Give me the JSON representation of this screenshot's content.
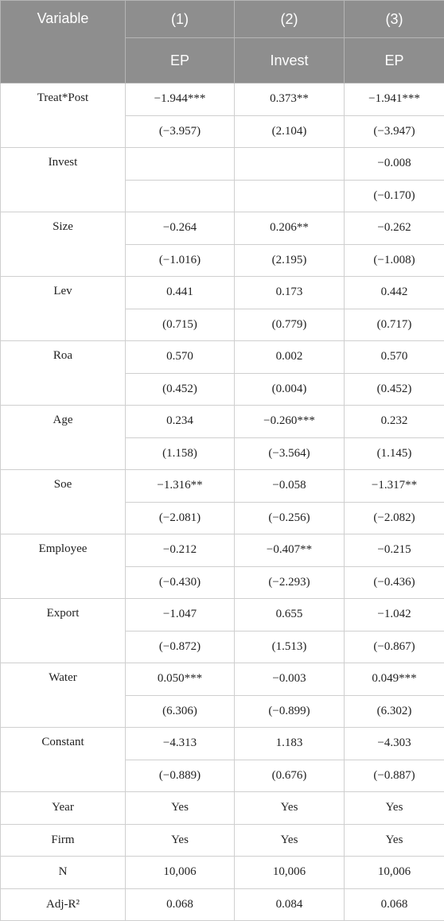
{
  "header": {
    "variable": "Variable",
    "columns": [
      "(1)",
      "(2)",
      "(3)"
    ],
    "dependent": [
      "EP",
      "Invest",
      "EP"
    ]
  },
  "rows": [
    {
      "label": "Treat*Post",
      "coef": [
        "−1.944***",
        "0.373**",
        "−1.941***"
      ],
      "t": [
        "(−3.957)",
        "(2.104)",
        "(−3.947)"
      ]
    },
    {
      "label": "Invest",
      "coef": [
        null,
        null,
        "−0.008"
      ],
      "t": [
        null,
        null,
        "(−0.170)"
      ]
    },
    {
      "label": "Size",
      "coef": [
        "−0.264",
        "0.206**",
        "−0.262"
      ],
      "t": [
        "(−1.016)",
        "(2.195)",
        "(−1.008)"
      ]
    },
    {
      "label": "Lev",
      "coef": [
        "0.441",
        "0.173",
        "0.442"
      ],
      "t": [
        "(0.715)",
        "(0.779)",
        "(0.717)"
      ]
    },
    {
      "label": "Roa",
      "coef": [
        "0.570",
        "0.002",
        "0.570"
      ],
      "t": [
        "(0.452)",
        "(0.004)",
        "(0.452)"
      ]
    },
    {
      "label": "Age",
      "coef": [
        "0.234",
        "−0.260***",
        "0.232"
      ],
      "t": [
        "(1.158)",
        "(−3.564)",
        "(1.145)"
      ]
    },
    {
      "label": "Soe",
      "coef": [
        "−1.316**",
        "−0.058",
        "−1.317**"
      ],
      "t": [
        "(−2.081)",
        "(−0.256)",
        "(−2.082)"
      ]
    },
    {
      "label": "Employee",
      "coef": [
        "−0.212",
        "−0.407**",
        "−0.215"
      ],
      "t": [
        "(−0.430)",
        "(−2.293)",
        "(−0.436)"
      ]
    },
    {
      "label": "Export",
      "coef": [
        "−1.047",
        "0.655",
        "−1.042"
      ],
      "t": [
        "(−0.872)",
        "(1.513)",
        "(−0.867)"
      ]
    },
    {
      "label": "Water",
      "coef": [
        "0.050***",
        "−0.003",
        "0.049***"
      ],
      "t": [
        "(6.306)",
        "(−0.899)",
        "(6.302)"
      ]
    },
    {
      "label": "Constant",
      "coef": [
        "−4.313",
        "1.183",
        "−4.303"
      ],
      "t": [
        "(−0.889)",
        "(0.676)",
        "(−0.887)"
      ]
    }
  ],
  "footer": [
    {
      "label": "Year",
      "values": [
        "Yes",
        "Yes",
        "Yes"
      ]
    },
    {
      "label": "Firm",
      "values": [
        "Yes",
        "Yes",
        "Yes"
      ]
    },
    {
      "label": "N",
      "values": [
        "10,006",
        "10,006",
        "10,006"
      ]
    },
    {
      "label": "Adj-R²",
      "values": [
        "0.068",
        "0.084",
        "0.068"
      ]
    }
  ]
}
